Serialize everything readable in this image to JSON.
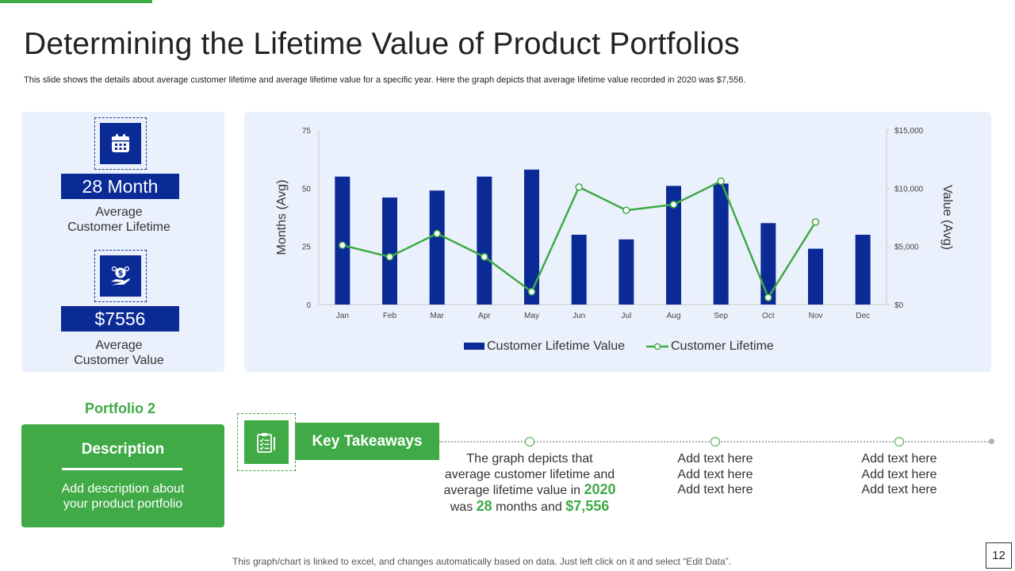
{
  "slide": {
    "title": "Determining the Lifetime Value of Product Portfolios",
    "subtitle": "This slide shows the details about average customer lifetime and average lifetime value for a specific year. Here the graph depicts that average lifetime value recorded in 2020 was $7,556.",
    "footer": "This graph/chart is linked to excel, and changes automatically based on data. Just left click on it and select “Edit Data”.",
    "page_number": "12",
    "accent_color": "#3faa46",
    "primary_color": "#0a2a96"
  },
  "metrics": [
    {
      "icon": "calendar-icon",
      "value": "28 Month",
      "label_line1": "Average",
      "label_line2": "Customer Lifetime"
    },
    {
      "icon": "money-hand-icon",
      "value": "$7556",
      "label_line1": "Average",
      "label_line2": "Customer Value"
    }
  ],
  "portfolio": {
    "label": "Portfolio 2",
    "description_title": "Description",
    "description_line1": "Add description about",
    "description_line2": "your product portfolio"
  },
  "takeaways": {
    "title": "Key Takeaways",
    "icon": "clipboard-checklist-icon",
    "item1": {
      "line1": "The graph depicts that",
      "line2": "average customer lifetime and",
      "line3_pre": "average lifetime value in ",
      "year": "2020",
      "line4_pre": "was ",
      "months": "28",
      "line4_mid": " months and ",
      "value": "$7,556"
    },
    "item2": [
      "Add text here",
      "Add text here",
      "Add text here"
    ],
    "item3": [
      "Add text here",
      "Add text here",
      "Add text here"
    ]
  },
  "chart_data": {
    "type": "bar",
    "categories": [
      "Jan",
      "Feb",
      "Mar",
      "Apr",
      "May",
      "Jun",
      "Jul",
      "Aug",
      "Sep",
      "Oct",
      "Nov",
      "Dec"
    ],
    "series": [
      {
        "name": "Customer Lifetime Value",
        "kind": "bar",
        "axis": "left",
        "color": "#0a2a96",
        "values": [
          55,
          46,
          49,
          55,
          58,
          30,
          28,
          51,
          52,
          35,
          24,
          30
        ]
      },
      {
        "name": "Customer Lifetime",
        "kind": "line",
        "axis": "right",
        "color": "#3faa46",
        "values": [
          5100,
          4100,
          6100,
          4100,
          1100,
          10100,
          8100,
          8600,
          10600,
          600,
          7100,
          null
        ]
      }
    ],
    "ylabel": "Months (Avg)",
    "y2label": "Value (Avg)",
    "ylim": [
      0,
      75
    ],
    "yticks": [
      "0",
      "25",
      "50",
      "75"
    ],
    "y2lim": [
      0,
      15000
    ],
    "y2ticks": [
      "$0",
      "$5,000",
      "$10,000",
      "$15,000"
    ],
    "legend": "bottom",
    "grid": false
  }
}
